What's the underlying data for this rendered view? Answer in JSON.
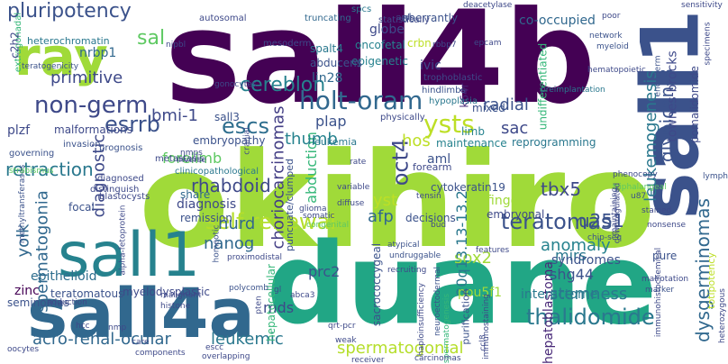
{
  "palette": {
    "purple": "#482173",
    "indigo": "#3b528b",
    "teal": "#21918c",
    "green": "#5ec962",
    "lime": "#a0da39",
    "yellow": "#d8e219"
  },
  "words": [
    {
      "text": "okihiro",
      "color": "#a0da39",
      "vertical": false
    },
    {
      "text": "sall4b",
      "color": "#440154",
      "vertical": false
    },
    {
      "text": "duane",
      "color": "#21a685",
      "vertical": false
    },
    {
      "text": "sall4a",
      "color": "#31688e",
      "vertical": false
    },
    {
      "text": "sall1",
      "color": "#26828e",
      "vertical": false
    },
    {
      "text": "sall1",
      "color": "#3b528b",
      "vertical": true
    },
    {
      "text": "ray",
      "color": "#a0da39",
      "vertical": false
    },
    {
      "text": "pluripotency",
      "color": "#3b528b",
      "vertical": false
    },
    {
      "text": "non-germ",
      "color": "#3e4989",
      "vertical": false
    },
    {
      "text": "holt-oram",
      "color": "#31688e",
      "vertical": false
    },
    {
      "text": "self-renewal",
      "color": "#b5de2b",
      "vertical": false
    },
    {
      "text": "teratomas",
      "color": "#3b528b",
      "vertical": false
    },
    {
      "text": "ysts",
      "color": "#bddf26",
      "vertical": false
    },
    {
      "text": "thalidomide",
      "color": "#2a788e",
      "vertical": false
    },
    {
      "text": "spermatogonial",
      "color": "#b5de2b",
      "vertical": false
    },
    {
      "text": "acro-renal-ocular",
      "color": "#31688e",
      "vertical": false
    },
    {
      "text": "spermatogonia",
      "color": "#31688e",
      "vertical": true
    },
    {
      "text": "escs",
      "color": "#2e6e8e",
      "vertical": false
    },
    {
      "text": "esrrb",
      "color": "#3b528b",
      "vertical": false
    },
    {
      "text": "primitive",
      "color": "#3e4989",
      "vertical": false
    },
    {
      "text": "retraction",
      "color": "#2a788e",
      "vertical": false
    },
    {
      "text": "cereblon",
      "color": "#26828e",
      "vertical": false
    },
    {
      "text": "sal",
      "color": "#5ec962",
      "vertical": false
    },
    {
      "text": "rhabdoid",
      "color": "#3e4989",
      "vertical": false
    },
    {
      "text": "nanog",
      "color": "#31688e",
      "vertical": false
    },
    {
      "text": "oct4",
      "color": "#3e4989",
      "vertical": true
    },
    {
      "text": "afp",
      "color": "#31688e",
      "vertical": false
    },
    {
      "text": "sox2",
      "color": "#a0da39",
      "vertical": false
    },
    {
      "text": "u251",
      "color": "#3b528b",
      "vertical": false
    },
    {
      "text": "tbx5",
      "color": "#3e4989",
      "vertical": false
    },
    {
      "text": "glypican-3",
      "color": "#3b528b",
      "vertical": true
    },
    {
      "text": "dysgerminomas",
      "color": "#31688e",
      "vertical": true
    },
    {
      "text": "leukemogenesis",
      "color": "#2a788e",
      "vertical": true
    },
    {
      "text": "townes-brocks",
      "color": "#3e4989",
      "vertical": true
    },
    {
      "text": "radial",
      "color": "#3b528b",
      "vertical": false
    },
    {
      "text": "choriocarcinomas",
      "color": "#433e85",
      "vertical": true
    },
    {
      "text": "abduction",
      "color": "#35b779",
      "vertical": true
    },
    {
      "text": "diagnostic",
      "color": "#3e4989",
      "vertical": true
    },
    {
      "text": "hepatoblastoma",
      "color": "#482878",
      "vertical": true
    },
    {
      "text": "20q13.13-13.2",
      "color": "#2a788e",
      "vertical": true
    },
    {
      "text": "yolk",
      "color": "#31688e",
      "vertical": true
    },
    {
      "text": "stemness",
      "color": "#2a788e",
      "vertical": false
    },
    {
      "text": "shg44",
      "color": "#3b528b",
      "vertical": false
    },
    {
      "text": "anomaly",
      "color": "#26828e",
      "vertical": false
    },
    {
      "text": "leukemic",
      "color": "#2a788e",
      "vertical": false
    },
    {
      "text": "nurd",
      "color": "#31688e",
      "vertical": false
    },
    {
      "text": "bmi-1",
      "color": "#3e4989",
      "vertical": false
    },
    {
      "text": "hos",
      "color": "#bddf26",
      "vertical": false
    },
    {
      "text": "thumb",
      "color": "#26828e",
      "vertical": false
    },
    {
      "text": "sac",
      "color": "#3e4989",
      "vertical": false
    },
    {
      "text": "yst",
      "color": "#bddf26",
      "vertical": false
    },
    {
      "text": "forelimb",
      "color": "#5ec962",
      "vertical": false
    },
    {
      "text": "plap",
      "color": "#3b528b",
      "vertical": false
    },
    {
      "text": "nrbp1",
      "color": "#31688e",
      "vertical": false
    },
    {
      "text": "mirs",
      "color": "#2a788e",
      "vertical": false
    },
    {
      "text": "syndromes",
      "color": "#3b528b",
      "vertical": false
    },
    {
      "text": "interactome",
      "color": "#2a788e",
      "vertical": false
    },
    {
      "text": "pou5f1",
      "color": "#a0da39",
      "vertical": false
    },
    {
      "text": "mds",
      "color": "#3e4989",
      "vertical": false
    },
    {
      "text": "prc2",
      "color": "#3b528b",
      "vertical": false
    },
    {
      "text": "zinc",
      "color": "#440154",
      "vertical": false
    },
    {
      "text": "epithelioid",
      "color": "#2e6e8e",
      "vertical": false
    },
    {
      "text": "teratomatous",
      "color": "#3b528b",
      "vertical": false
    },
    {
      "text": "myelodysplastic",
      "color": "#3e4989",
      "vertical": false
    },
    {
      "text": "remission",
      "color": "#3b528b",
      "vertical": false
    },
    {
      "text": "diagnosis",
      "color": "#3e4989",
      "vertical": false
    },
    {
      "text": "share",
      "color": "#31688e",
      "vertical": false
    },
    {
      "text": "seminomas",
      "color": "#3b528b",
      "vertical": false
    },
    {
      "text": "plzf",
      "color": "#3e4989",
      "vertical": false
    },
    {
      "text": "malformations",
      "color": "#3e4989",
      "vertical": false
    },
    {
      "text": "heterochromatin",
      "color": "#2a788e",
      "vertical": false
    },
    {
      "text": "embryopathy",
      "color": "#3b528b",
      "vertical": false
    },
    {
      "text": "globe",
      "color": "#3e4989",
      "vertical": false
    },
    {
      "text": "lin28",
      "color": "#31688e",
      "vertical": false
    },
    {
      "text": "oncofetal",
      "color": "#26828e",
      "vertical": false
    },
    {
      "text": "epigenetic",
      "color": "#26828e",
      "vertical": false
    },
    {
      "text": "abducens",
      "color": "#3b528b",
      "vertical": false
    },
    {
      "text": "crbn",
      "color": "#bddf26",
      "vertical": false
    },
    {
      "text": "spalt4",
      "color": "#2a788e",
      "vertical": false
    },
    {
      "text": "ivic",
      "color": "#3e4989",
      "vertical": false
    },
    {
      "text": "co-occupied",
      "color": "#31688e",
      "vertical": false
    },
    {
      "text": "aberrantly",
      "color": "#3b528b",
      "vertical": false
    },
    {
      "text": "undifferentiated",
      "color": "#35b779",
      "vertical": true
    },
    {
      "text": "pomalidomide",
      "color": "#3e4989",
      "vertical": true
    },
    {
      "text": "k64r",
      "color": "#482878",
      "vertical": true
    },
    {
      "text": "mixed",
      "color": "#3b528b",
      "vertical": false
    },
    {
      "text": "limb",
      "color": "#26828e",
      "vertical": false
    },
    {
      "text": "reprogramming",
      "color": "#2a788e",
      "vertical": false
    },
    {
      "text": "maintenance",
      "color": "#26828e",
      "vertical": false
    },
    {
      "text": "aml",
      "color": "#3b528b",
      "vertical": false
    },
    {
      "text": "finger",
      "color": "#a0da39",
      "vertical": false
    },
    {
      "text": "embryonal",
      "color": "#3e4989",
      "vertical": false
    },
    {
      "text": "cytokeratin19",
      "color": "#3b528b",
      "vertical": false
    },
    {
      "text": "decisions",
      "color": "#3b528b",
      "vertical": false
    },
    {
      "text": "leukemia",
      "color": "#2a788e",
      "vertical": false
    },
    {
      "text": "forearm",
      "color": "#3e4989",
      "vertical": false
    },
    {
      "text": "sall3",
      "color": "#3b528b",
      "vertical": false
    },
    {
      "text": "mesoderm",
      "color": "#3e4989",
      "vertical": false
    },
    {
      "text": "autosomal",
      "color": "#3e4989",
      "vertical": false
    },
    {
      "text": "truncating",
      "color": "#31688e",
      "vertical": false
    },
    {
      "text": "spcs",
      "color": "#2a788e",
      "vertical": false
    },
    {
      "text": "statistically",
      "color": "#3e4989",
      "vertical": false
    },
    {
      "text": "trophoblastic",
      "color": "#3e4989",
      "vertical": false
    },
    {
      "text": "hindlimbs",
      "color": "#3b528b",
      "vertical": false
    },
    {
      "text": "hypoplasia",
      "color": "#2a788e",
      "vertical": false
    },
    {
      "text": "physically",
      "color": "#3e4989",
      "vertical": false
    },
    {
      "text": "puncuate/clumped",
      "color": "#3b528b",
      "vertical": true
    },
    {
      "text": "clinicopathological",
      "color": "#2a788e",
      "vertical": false
    },
    {
      "text": "prognosis",
      "color": "#3b528b",
      "vertical": false
    },
    {
      "text": "metastasis",
      "color": "#3e4989",
      "vertical": false
    },
    {
      "text": "invasion",
      "color": "#3b528b",
      "vertical": false
    },
    {
      "text": "governing",
      "color": "#3b528b",
      "vertical": false
    },
    {
      "text": "diagnosed",
      "color": "#3e4989",
      "vertical": false
    },
    {
      "text": "distinguish",
      "color": "#3e4989",
      "vertical": false
    },
    {
      "text": "blastocysts",
      "color": "#3e4989",
      "vertical": false
    },
    {
      "text": "focal",
      "color": "#3b528b",
      "vertical": false
    },
    {
      "text": "teratogenicity",
      "color": "#3b528b",
      "vertical": false
    },
    {
      "text": "extragonadal",
      "color": "#35b779",
      "vertical": true
    },
    {
      "text": "c2h2",
      "color": "#3e4989",
      "vertical": true
    },
    {
      "text": "gonocytes",
      "color": "#3e4989",
      "vertical": false
    },
    {
      "text": "nipbl",
      "color": "#3e4989",
      "vertical": false
    },
    {
      "text": "ards",
      "color": "#3e4989",
      "vertical": false
    },
    {
      "text": "deacetylase",
      "color": "#3e4989",
      "vertical": false
    },
    {
      "text": "rbbp7",
      "color": "#3e4989",
      "vertical": false
    },
    {
      "text": "epcam",
      "color": "#3e4989",
      "vertical": false
    },
    {
      "text": "network",
      "color": "#3b528b",
      "vertical": false
    },
    {
      "text": "myeloid",
      "color": "#3b528b",
      "vertical": false
    },
    {
      "text": "poor",
      "color": "#3e4989",
      "vertical": false
    },
    {
      "text": "endoderm",
      "color": "#3b528b",
      "vertical": true
    },
    {
      "text": "hematopoietic",
      "color": "#3e4989",
      "vertical": false
    },
    {
      "text": "preimplantation",
      "color": "#2a788e",
      "vertical": false
    },
    {
      "text": "sensitivity",
      "color": "#3e4989",
      "vertical": false
    },
    {
      "text": "specimens",
      "color": "#3e4989",
      "vertical": true
    },
    {
      "text": "phenocopy",
      "color": "#3e4989",
      "vertical": false
    },
    {
      "text": "triphalangeal",
      "color": "#5ec962",
      "vertical": false
    },
    {
      "text": "u87",
      "color": "#3b528b",
      "vertical": false
    },
    {
      "text": "lymph",
      "color": "#3b528b",
      "vertical": false
    },
    {
      "text": "stained",
      "color": "#3e4989",
      "vertical": false
    },
    {
      "text": "nonsense",
      "color": "#3e4989",
      "vertical": false
    },
    {
      "text": "maintaining",
      "color": "#3e4989",
      "vertical": true
    },
    {
      "text": "marker",
      "color": "#3b528b",
      "vertical": false
    },
    {
      "text": "malrotation",
      "color": "#3e4989",
      "vertical": false
    },
    {
      "text": "totipotency",
      "color": "#bddf26",
      "vertical": true
    },
    {
      "text": "pure",
      "color": "#3b528b",
      "vertical": false
    },
    {
      "text": "immunohistochemical",
      "color": "#3e4989",
      "vertical": true
    },
    {
      "text": "chip-seq",
      "color": "#3b528b",
      "vertical": false
    },
    {
      "text": "downregulated",
      "color": "#3e4989",
      "vertical": true
    },
    {
      "text": "features",
      "color": "#3e4989",
      "vertical": false
    },
    {
      "text": "neuroectodermal",
      "color": "#3b528b",
      "vertical": true
    },
    {
      "text": "spermatogenesis",
      "color": "#35b779",
      "vertical": true
    },
    {
      "text": "purification",
      "color": "#3b528b",
      "vertical": true
    },
    {
      "text": "immunostaining",
      "color": "#3e4989",
      "vertical": true
    },
    {
      "text": "haploinsufficiency",
      "color": "#3e4989",
      "vertical": true
    },
    {
      "text": "ccl8",
      "color": "#3e4989",
      "vertical": true
    },
    {
      "text": "carcinomas",
      "color": "#3e4989",
      "vertical": false
    },
    {
      "text": "recruiting",
      "color": "#3e4989",
      "vertical": false
    },
    {
      "text": "sacrococcygeal",
      "color": "#3b528b",
      "vertical": true
    },
    {
      "text": "hepatocellular",
      "color": "#35b779",
      "vertical": true
    },
    {
      "text": "weak",
      "color": "#3e4989",
      "vertical": false
    },
    {
      "text": "qrt-pcr",
      "color": "#3e4989",
      "vertical": false
    },
    {
      "text": "abca3",
      "color": "#3e4989",
      "vertical": false
    },
    {
      "text": "gl",
      "color": "#3e4989",
      "vertical": false
    },
    {
      "text": "malignant",
      "color": "#3e4989",
      "vertical": false
    },
    {
      "text": "histone",
      "color": "#3e4989",
      "vertical": false
    },
    {
      "text": "adduction",
      "color": "#3e4989",
      "vertical": false
    },
    {
      "text": "hcc",
      "color": "#3e4989",
      "vertical": false
    },
    {
      "text": "nmp",
      "color": "#3e4989",
      "vertical": false
    },
    {
      "text": "escc",
      "color": "#3e4989",
      "vertical": false
    },
    {
      "text": "overlapping",
      "color": "#3e4989",
      "vertical": false
    },
    {
      "text": "oocytes",
      "color": "#3e4989",
      "vertical": false
    },
    {
      "text": "care",
      "color": "#3e4989",
      "vertical": false
    },
    {
      "text": "components",
      "color": "#3e4989",
      "vertical": false
    },
    {
      "text": "alpha-fetoprotein",
      "color": "#3e4989",
      "vertical": true
    },
    {
      "text": "methyltransferases",
      "color": "#3b528b",
      "vertical": true
    },
    {
      "text": "homeotic",
      "color": "#3b528b",
      "vertical": true
    },
    {
      "text": "proximodistal",
      "color": "#3e4989",
      "vertical": false
    },
    {
      "text": "polycomb",
      "color": "#3b528b",
      "vertical": false
    },
    {
      "text": "pten",
      "color": "#3e4989",
      "vertical": true
    },
    {
      "text": "undruggable",
      "color": "#3b528b",
      "vertical": false
    },
    {
      "text": "atypical",
      "color": "#3b528b",
      "vertical": false
    },
    {
      "text": "receiver",
      "color": "#3e4989",
      "vertical": false
    },
    {
      "text": "bud",
      "color": "#3e4989",
      "vertical": false
    },
    {
      "text": "diffuse",
      "color": "#3e4989",
      "vertical": false
    },
    {
      "text": "glioma",
      "color": "#3e4989",
      "vertical": false
    },
    {
      "text": "variable",
      "color": "#3e4989",
      "vertical": false
    },
    {
      "text": "tensin",
      "color": "#3e4989",
      "vertical": false
    },
    {
      "text": "nmps",
      "color": "#3e4989",
      "vertical": false
    },
    {
      "text": "inverse",
      "color": "#3e4989",
      "vertical": false
    },
    {
      "text": "cranial",
      "color": "#3e4989",
      "vertical": true
    },
    {
      "text": "congenital",
      "color": "#5ec962",
      "vertical": false
    },
    {
      "text": "somatic",
      "color": "#3e4989",
      "vertical": false
    },
    {
      "text": "strabismus",
      "color": "#5ec962",
      "vertical": false
    },
    {
      "text": "rate",
      "color": "#3e4989",
      "vertical": false
    },
    {
      "text": "heterozygous",
      "color": "#3e4989",
      "vertical": true
    }
  ]
}
